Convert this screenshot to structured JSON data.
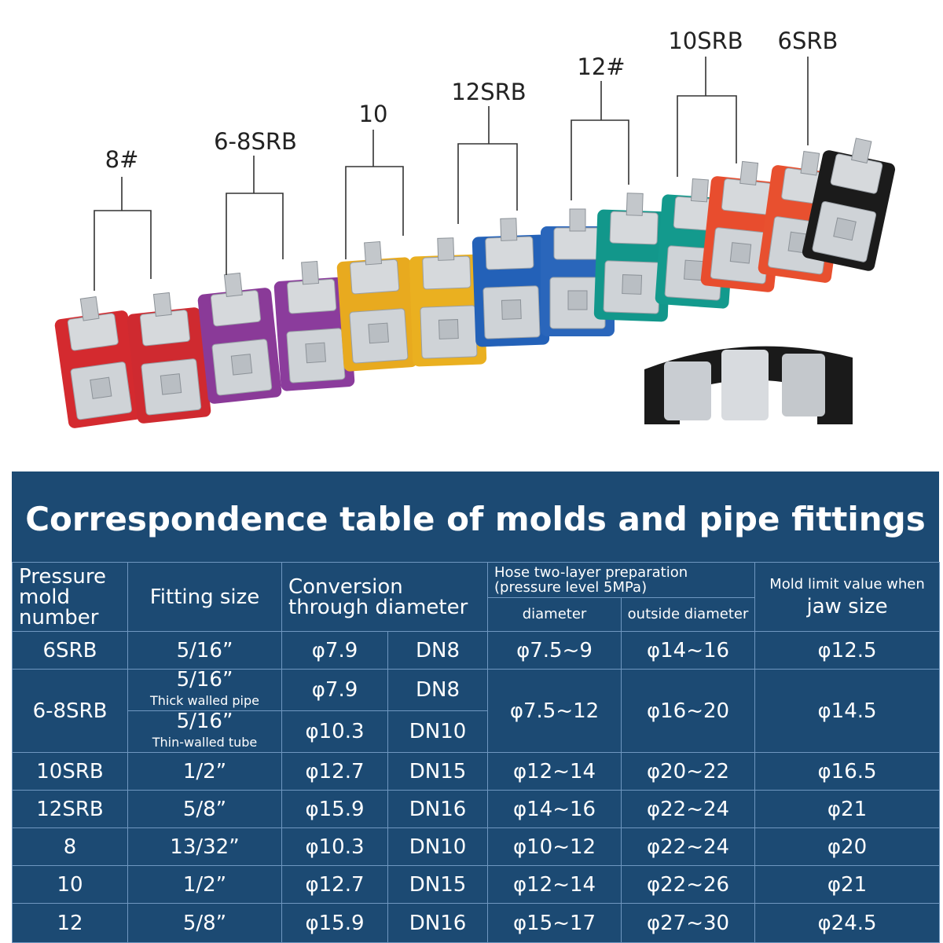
{
  "labels": [
    "8#",
    "6-8SRB",
    "10",
    "12SRB",
    "12#",
    "10SRB",
    "6SRB"
  ],
  "table": {
    "title": "Correspondence table of molds and pipe fittings",
    "header": {
      "mold": "Pressure mold number",
      "fitting": "Fitting size",
      "conversion": "Conversion through diameter",
      "hose": "Hose two-layer preparation (pressure level 5MPa)",
      "diameter": "diameter",
      "outside": "outside diameter",
      "limit_small": "Mold limit value when",
      "limit_large": "jaw size"
    },
    "rows": [
      [
        "6SRB",
        "5/16”",
        "φ7.9",
        "DN8",
        "φ7.5~9",
        "φ14~16",
        "φ12.5"
      ],
      [
        "6-8SRB",
        "5/16”",
        "Thick walled pipe",
        "φ7.9",
        "DN8",
        "φ7.5~12",
        "φ16~20",
        "φ14.5"
      ],
      [
        "5/16”",
        "Thin-walled tube",
        "φ10.3",
        "DN10"
      ],
      [
        "10SRB",
        "1/2”",
        "φ12.7",
        "DN15",
        "φ12~14",
        "φ20~22",
        "φ16.5"
      ],
      [
        "12SRB",
        "5/8”",
        "φ15.9",
        "DN16",
        "φ14~16",
        "φ22~24",
        "φ21"
      ],
      [
        "8",
        "13/32”",
        "φ10.3",
        "DN10",
        "φ10~12",
        "φ22~24",
        "φ20"
      ],
      [
        "10",
        "1/2”",
        "φ12.7",
        "DN15",
        "φ12~14",
        "φ22~26",
        "φ21"
      ],
      [
        "12",
        "5/8”",
        "φ15.9",
        "DN16",
        "φ15~17",
        "φ27~30",
        "φ24.5"
      ]
    ]
  }
}
